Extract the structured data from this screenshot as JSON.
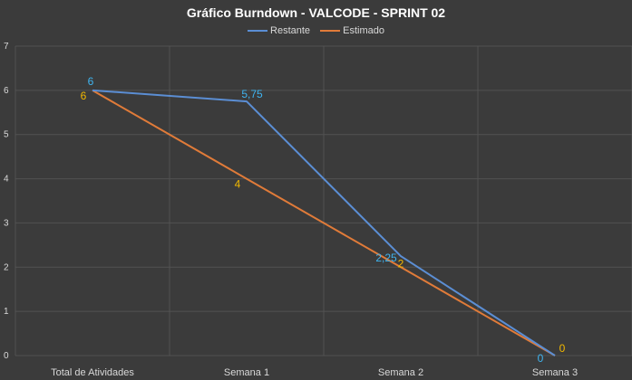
{
  "chart_data": {
    "type": "line",
    "title": "Gráfico Burndown - VALCODE - SPRINT 02",
    "categories": [
      "Total de Atividades",
      "Semana 1",
      "Semana 2",
      "Semana 3"
    ],
    "series": [
      {
        "name": "Restante",
        "values": [
          6,
          5.75,
          2.25,
          0
        ],
        "labels": [
          "6",
          "5,75",
          "2,25",
          "0"
        ],
        "color": "#5b8ed4",
        "label_color": "#3fb4f0"
      },
      {
        "name": "Estimado",
        "values": [
          6,
          4,
          2,
          0
        ],
        "labels": [
          "6",
          "4",
          "2",
          "0"
        ],
        "color": "#e07b39",
        "label_color": "#f2b800"
      }
    ],
    "ylim": [
      0,
      7
    ],
    "yticks": [
      "0",
      "1",
      "2",
      "3",
      "4",
      "5",
      "6",
      "7"
    ],
    "grid": true,
    "legend": "top"
  }
}
